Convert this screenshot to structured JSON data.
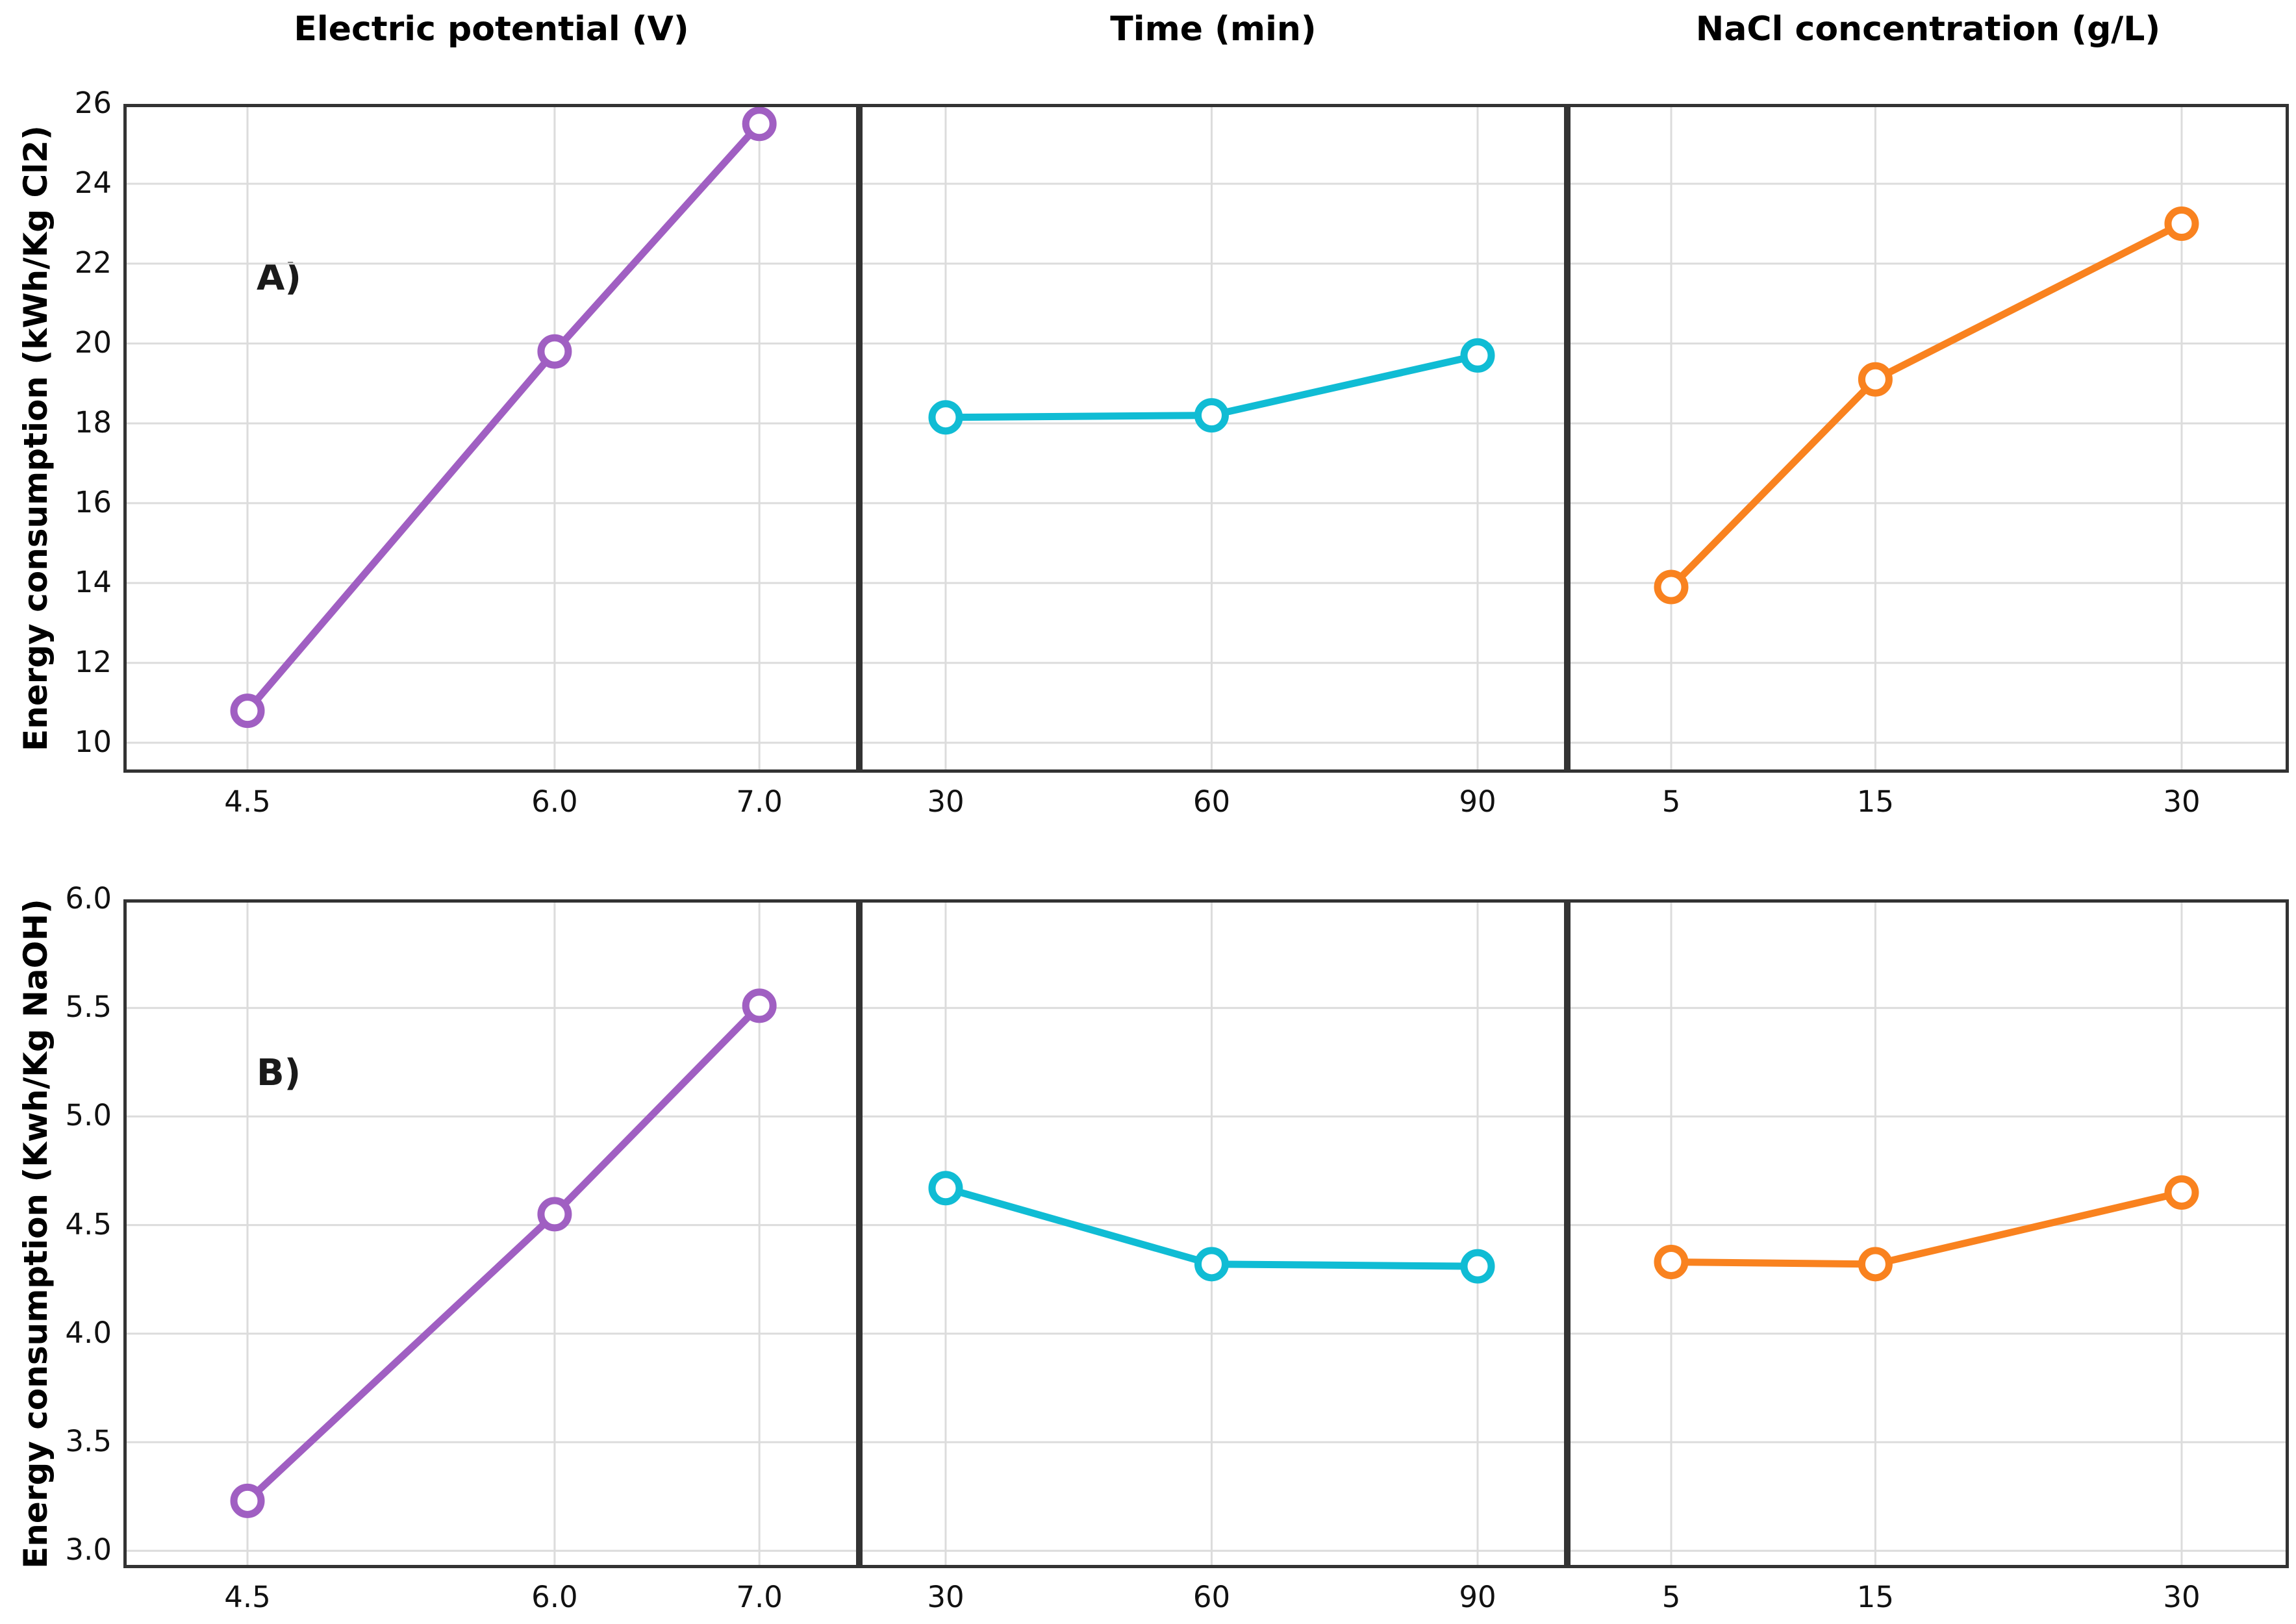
{
  "figure": {
    "columns": [
      {
        "title": "Electric potential (V)"
      },
      {
        "title": "Time (min)"
      },
      {
        "title": "NaCl concentration (g/L)"
      }
    ],
    "rows": [
      {
        "label": "A)",
        "ylabel": "Energy consumption (kWh/Kg Cl2)"
      },
      {
        "label": "B)",
        "ylabel": "Energy consumption (Kwh/Kg NaOH)"
      }
    ],
    "colors": {
      "electric_potential_line": "#a05fc2",
      "time_line": "#10bcd4",
      "nacl_line": "#f9821f",
      "gridline": "#dcdcdc",
      "spine": "#333333"
    }
  },
  "chart_data": [
    {
      "id": "A-electric-potential",
      "row": 0,
      "col": 0,
      "type": "line",
      "title": "Electric potential (V)",
      "ylabel": "Energy consumption (kWh/Kg Cl2)",
      "x": [
        4.5,
        6.0,
        7.0
      ],
      "y": [
        10.8,
        19.8,
        25.5
      ],
      "color": "#a05fc2",
      "grid": true,
      "xlim": [
        3.894,
        7.488
      ],
      "ylim": [
        9.25,
        26
      ],
      "xticks": [
        4.5,
        6.0,
        7.0
      ],
      "xtick_labels": [
        "4.5",
        "6.0",
        "7.0"
      ],
      "yticks": [
        10,
        12,
        14,
        16,
        18,
        20,
        22,
        24,
        26
      ],
      "ytick_labels": [
        "10",
        "12",
        "14",
        "16",
        "18",
        "20",
        "22",
        "24",
        "26"
      ]
    },
    {
      "id": "A-time",
      "row": 0,
      "col": 1,
      "type": "line",
      "title": "Time (min)",
      "ylabel": "Energy consumption (kWh/Kg Cl2)",
      "x": [
        30,
        60,
        90
      ],
      "y": [
        18.15,
        18.2,
        19.7
      ],
      "color": "#10bcd4",
      "grid": true,
      "xlim": [
        20.26,
        100.11
      ],
      "ylim": [
        9.25,
        26
      ],
      "xticks": [
        30,
        60,
        90
      ],
      "xtick_labels": [
        "30",
        "60",
        "90"
      ],
      "yticks": [
        10,
        12,
        14,
        16,
        18,
        20,
        22,
        24,
        26
      ],
      "ytick_labels": []
    },
    {
      "id": "A-nacl-concentration",
      "row": 0,
      "col": 2,
      "type": "line",
      "title": "NaCl concentration (g/L)",
      "ylabel": "Energy consumption (kWh/Kg Cl2)",
      "x": [
        5,
        15,
        30
      ],
      "y": [
        13.9,
        19.1,
        23.0
      ],
      "color": "#f9821f",
      "grid": true,
      "xlim": [
        -0.09,
        35.25
      ],
      "ylim": [
        9.25,
        26
      ],
      "xticks": [
        5,
        15,
        30
      ],
      "xtick_labels": [
        "5",
        "15",
        "30"
      ],
      "yticks": [
        10,
        12,
        14,
        16,
        18,
        20,
        22,
        24,
        26
      ],
      "ytick_labels": []
    },
    {
      "id": "B-electric-potential",
      "row": 1,
      "col": 0,
      "type": "line",
      "title": "Electric potential (V)",
      "ylabel": "Energy consumption (Kwh/Kg NaOH)",
      "x": [
        4.5,
        6.0,
        7.0
      ],
      "y": [
        3.23,
        4.55,
        5.51
      ],
      "color": "#a05fc2",
      "grid": true,
      "xlim": [
        3.894,
        7.488
      ],
      "ylim": [
        2.92,
        6.0
      ],
      "xticks": [
        4.5,
        6.0,
        7.0
      ],
      "xtick_labels": [
        "4.5",
        "6.0",
        "7.0"
      ],
      "yticks": [
        3.0,
        3.5,
        4.0,
        4.5,
        5.0,
        5.5,
        6.0
      ],
      "ytick_labels": [
        "3.0",
        "3.5",
        "4.0",
        "4.5",
        "5.0",
        "5.5",
        "6.0"
      ]
    },
    {
      "id": "B-time",
      "row": 1,
      "col": 1,
      "type": "line",
      "title": "Time (min)",
      "ylabel": "Energy consumption (Kwh/Kg NaOH)",
      "x": [
        30,
        60,
        90
      ],
      "y": [
        4.67,
        4.32,
        4.31
      ],
      "color": "#10bcd4",
      "grid": true,
      "xlim": [
        20.26,
        100.11
      ],
      "ylim": [
        2.92,
        6.0
      ],
      "xticks": [
        30,
        60,
        90
      ],
      "xtick_labels": [
        "30",
        "60",
        "90"
      ],
      "yticks": [
        3.0,
        3.5,
        4.0,
        4.5,
        5.0,
        5.5,
        6.0
      ],
      "ytick_labels": []
    },
    {
      "id": "B-nacl-concentration",
      "row": 1,
      "col": 2,
      "type": "line",
      "title": "NaCl concentration (g/L)",
      "ylabel": "Energy consumption (Kwh/Kg NaOH)",
      "x": [
        5,
        15,
        30
      ],
      "y": [
        4.33,
        4.32,
        4.65
      ],
      "color": "#f9821f",
      "grid": true,
      "xlim": [
        -0.09,
        35.25
      ],
      "ylim": [
        2.92,
        6.0
      ],
      "xticks": [
        5,
        15,
        30
      ],
      "xtick_labels": [
        "5",
        "15",
        "30"
      ],
      "yticks": [
        3.0,
        3.5,
        4.0,
        4.5,
        5.0,
        5.5,
        6.0
      ],
      "ytick_labels": []
    }
  ]
}
